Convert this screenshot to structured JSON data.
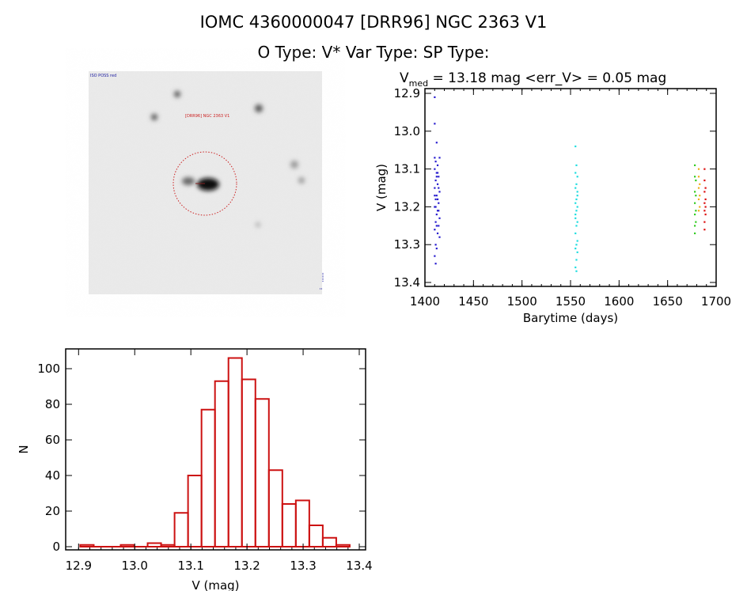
{
  "header": {
    "title": "IOMC 4360000047    [DRR96] NGC 2363 V1",
    "subtitle": "O Type: V*   Var Type:    SP Type:"
  },
  "image": {
    "label_top_left": "ISO POSS red",
    "label_target": "[DRR96] NGC 2363 V1",
    "colors": {
      "circle": "#cc2222",
      "label": "#cc2222",
      "text": "#1a1aa0"
    }
  },
  "chart_data": [
    {
      "type": "scatter",
      "title": "V_med = 13.18 mag <err_V> = 0.05 mag",
      "title_parts": {
        "v": "V",
        "sub": "med",
        "rest": " = 13.18 mag <err_V> = 0.05 mag"
      },
      "xlabel": "Barytime (days)",
      "ylabel": "V (mag)",
      "xlim": [
        1400,
        1700
      ],
      "ylim": [
        12.89,
        13.41
      ],
      "y_inverted": true,
      "xticks": [
        "1400",
        "1450",
        "1500",
        "1550",
        "1600",
        "1650",
        "1700"
      ],
      "yticks": [
        "12.9",
        "13.0",
        "13.1",
        "13.2",
        "13.3",
        "13.4"
      ],
      "series": [
        {
          "color": "#2a1fcf",
          "points": [
            [
              1410,
              12.91
            ],
            [
              1410,
              12.98
            ],
            [
              1412,
              13.03
            ],
            [
              1410,
              13.07
            ],
            [
              1411,
              13.08
            ],
            [
              1413,
              13.09
            ],
            [
              1415,
              13.07
            ],
            [
              1410,
              13.1
            ],
            [
              1412,
              13.11
            ],
            [
              1414,
              13.12
            ],
            [
              1411,
              13.13
            ],
            [
              1413,
              13.14
            ],
            [
              1410,
              13.15
            ],
            [
              1415,
              13.16
            ],
            [
              1412,
              13.17
            ],
            [
              1411,
              13.18
            ],
            [
              1414,
              13.19
            ],
            [
              1410,
              13.2
            ],
            [
              1413,
              13.21
            ],
            [
              1412,
              13.22
            ],
            [
              1415,
              13.23
            ],
            [
              1411,
              13.24
            ],
            [
              1414,
              13.25
            ],
            [
              1410,
              13.26
            ],
            [
              1413,
              13.27
            ],
            [
              1415,
              13.28
            ],
            [
              1411,
              13.3
            ],
            [
              1412,
              13.31
            ],
            [
              1410,
              13.33
            ],
            [
              1411,
              13.35
            ],
            [
              1412,
              13.12
            ],
            [
              1413,
              13.18
            ],
            [
              1414,
              13.21
            ],
            [
              1410,
              13.17
            ],
            [
              1412,
              13.25
            ],
            [
              1413,
              13.11
            ],
            [
              1411,
              13.2
            ],
            [
              1414,
              13.15
            ]
          ]
        },
        {
          "color": "#22dde0",
          "points": [
            [
              1555,
              13.04
            ],
            [
              1556,
              13.09
            ],
            [
              1555,
              13.11
            ],
            [
              1557,
              13.12
            ],
            [
              1556,
              13.14
            ],
            [
              1555,
              13.15
            ],
            [
              1557,
              13.17
            ],
            [
              1556,
              13.18
            ],
            [
              1555,
              13.19
            ],
            [
              1557,
              13.2
            ],
            [
              1556,
              13.21
            ],
            [
              1555,
              13.22
            ],
            [
              1557,
              13.24
            ],
            [
              1556,
              13.25
            ],
            [
              1555,
              13.27
            ],
            [
              1557,
              13.29
            ],
            [
              1556,
              13.3
            ],
            [
              1555,
              13.31
            ],
            [
              1557,
              13.32
            ],
            [
              1556,
              13.34
            ],
            [
              1555,
              13.36
            ],
            [
              1556,
              13.37
            ],
            [
              1557,
              13.16
            ],
            [
              1555,
              13.23
            ]
          ]
        },
        {
          "color": "#33cc22",
          "points": [
            [
              1678,
              13.09
            ],
            [
              1678,
              13.12
            ],
            [
              1679,
              13.13
            ],
            [
              1678,
              13.16
            ],
            [
              1679,
              13.17
            ],
            [
              1678,
              13.19
            ],
            [
              1679,
              13.21
            ],
            [
              1678,
              13.22
            ],
            [
              1679,
              13.24
            ],
            [
              1678,
              13.25
            ],
            [
              1678,
              13.27
            ]
          ]
        },
        {
          "color": "#f0b020",
          "points": [
            [
              1682,
              13.1
            ],
            [
              1682,
              13.12
            ],
            [
              1683,
              13.14
            ],
            [
              1682,
              13.15
            ],
            [
              1683,
              13.17
            ],
            [
              1682,
              13.18
            ],
            [
              1683,
              13.2
            ],
            [
              1682,
              13.21
            ]
          ]
        },
        {
          "color": "#dd1111",
          "points": [
            [
              1688,
              13.1
            ],
            [
              1688,
              13.13
            ],
            [
              1689,
              13.15
            ],
            [
              1688,
              13.16
            ],
            [
              1689,
              13.18
            ],
            [
              1688,
              13.19
            ],
            [
              1689,
              13.2
            ],
            [
              1688,
              13.21
            ],
            [
              1689,
              13.22
            ],
            [
              1688,
              13.24
            ],
            [
              1688,
              13.26
            ]
          ]
        }
      ]
    },
    {
      "type": "bar",
      "subtype": "histogram",
      "xlabel": "V (mag)",
      "ylabel": "N",
      "xlim": [
        12.88,
        13.41
      ],
      "ylim": [
        -3,
        112
      ],
      "xticks": [
        "12.9",
        "13.0",
        "13.1",
        "13.2",
        "13.3",
        "13.4"
      ],
      "yticks": [
        "0",
        "20",
        "40",
        "60",
        "80",
        "100"
      ],
      "bin_start": 12.903,
      "bin_width": 0.024,
      "color": "#cc1111",
      "values": [
        1,
        0,
        0,
        1,
        0,
        2,
        1,
        19,
        40,
        77,
        93,
        106,
        94,
        83,
        43,
        24,
        26,
        12,
        5,
        1
      ]
    }
  ]
}
